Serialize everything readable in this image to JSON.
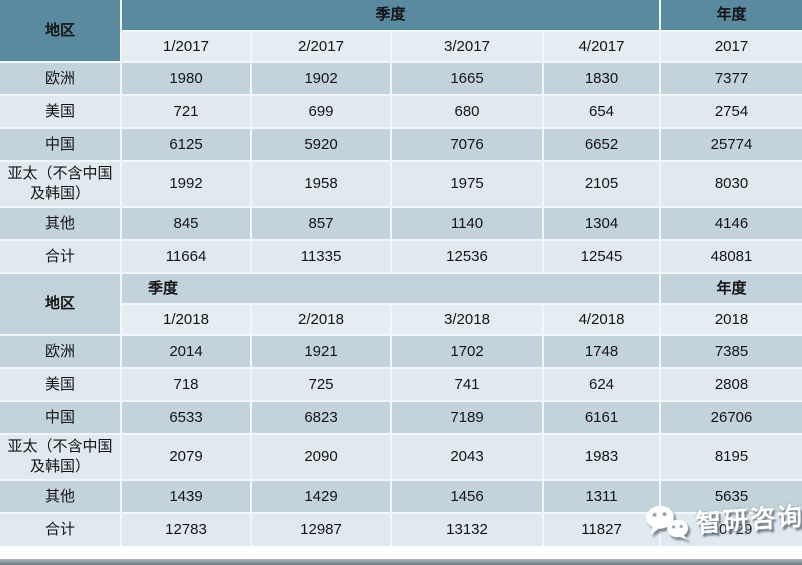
{
  "chart_data": {
    "type": "table",
    "description": "Quarterly and annual figures by region, 2017 and 2018",
    "sections": [
      {
        "region_header": "地区",
        "quarter_group_header": "季度",
        "year_group_header": "年度",
        "column_headers": [
          "1/2017",
          "2/2017",
          "3/2017",
          "4/2017",
          "2017"
        ],
        "rows": [
          {
            "region": "欧洲",
            "values": [
              "1980",
              "1902",
              "1665",
              "1830",
              "7377"
            ]
          },
          {
            "region": "美国",
            "values": [
              "721",
              "699",
              "680",
              "654",
              "2754"
            ]
          },
          {
            "region": "中国",
            "values": [
              "6125",
              "5920",
              "7076",
              "6652",
              "25774"
            ]
          },
          {
            "region": "亚太（不含中国及韩国）",
            "values": [
              "1992",
              "1958",
              "1975",
              "2105",
              "8030"
            ]
          },
          {
            "region": "其他",
            "values": [
              "845",
              "857",
              "1140",
              "1304",
              "4146"
            ]
          },
          {
            "region": "合计",
            "values": [
              "11664",
              "11335",
              "12536",
              "12545",
              "48081"
            ]
          }
        ]
      },
      {
        "region_header": "地区",
        "quarter_group_header": "季度",
        "year_group_header": "年度",
        "column_headers": [
          "1/2018",
          "2/2018",
          "3/2018",
          "4/2018",
          "2018"
        ],
        "rows": [
          {
            "region": "欧洲",
            "values": [
              "2014",
              "1921",
              "1702",
              "1748",
              "7385"
            ]
          },
          {
            "region": "美国",
            "values": [
              "718",
              "725",
              "741",
              "624",
              "2808"
            ]
          },
          {
            "region": "中国",
            "values": [
              "6533",
              "6823",
              "7189",
              "6161",
              "26706"
            ]
          },
          {
            "region": "亚太（不含中国及韩国）",
            "values": [
              "2079",
              "2090",
              "2043",
              "1983",
              "8195"
            ]
          },
          {
            "region": "其他",
            "values": [
              "1439",
              "1429",
              "1456",
              "1311",
              "5635"
            ]
          },
          {
            "region": "合计",
            "values": [
              "12783",
              "12987",
              "13132",
              "11827",
              "50729"
            ]
          }
        ]
      }
    ],
    "layout_hints": {
      "quarter_header_alignment_section_1": "center",
      "quarter_header_alignment_section_2": "left"
    }
  },
  "watermark": {
    "brand_text": "智研咨询",
    "icon": "wechat-icon"
  },
  "colors": {
    "header_teal": "#5a8aa0",
    "band_dark": "#c3d3dc",
    "band_light": "#dfe9ef",
    "subheader": "#e3edf2",
    "cell_border": "#f0f6f9",
    "bottom_bar": "#8b969d"
  }
}
